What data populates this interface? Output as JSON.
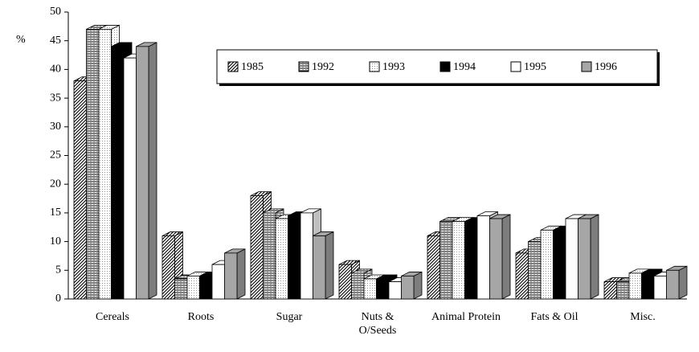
{
  "chart_data": {
    "type": "bar3d",
    "y_label": "%",
    "categories": [
      "Cereals",
      "Roots",
      "Sugar",
      "Nuts &\nO/Seeds",
      "Animal Protein",
      "Fats & Oil",
      "Misc."
    ],
    "series": [
      {
        "name": "1985",
        "color": "#000000",
        "pattern": "diagonal",
        "values": [
          38,
          11,
          18,
          6,
          11,
          8,
          3
        ]
      },
      {
        "name": "1992",
        "color": "#000000",
        "pattern": "horizontal",
        "values": [
          47,
          3.5,
          15,
          4.5,
          13.5,
          10,
          3
        ]
      },
      {
        "name": "1993",
        "color": "#000000",
        "pattern": "dots",
        "values": [
          47,
          4,
          14,
          3.5,
          13.5,
          12,
          4.5
        ]
      },
      {
        "name": "1994",
        "color": "#000000",
        "pattern": "solid",
        "values": [
          44,
          4,
          14.5,
          3.5,
          13.5,
          12,
          4.5
        ]
      },
      {
        "name": "1995",
        "color": "#ffffff",
        "pattern": "solid",
        "values": [
          42,
          6,
          15,
          3,
          14.5,
          14,
          4
        ]
      },
      {
        "name": "1996",
        "color": "#a6a6a6",
        "pattern": "solid",
        "values": [
          44,
          8,
          11,
          4,
          14,
          14,
          5
        ]
      }
    ],
    "ylim": [
      0,
      50
    ],
    "yticks": [
      0,
      5,
      10,
      15,
      20,
      25,
      30,
      35,
      40,
      45,
      50
    ],
    "grid": false,
    "legend": "top-right"
  }
}
